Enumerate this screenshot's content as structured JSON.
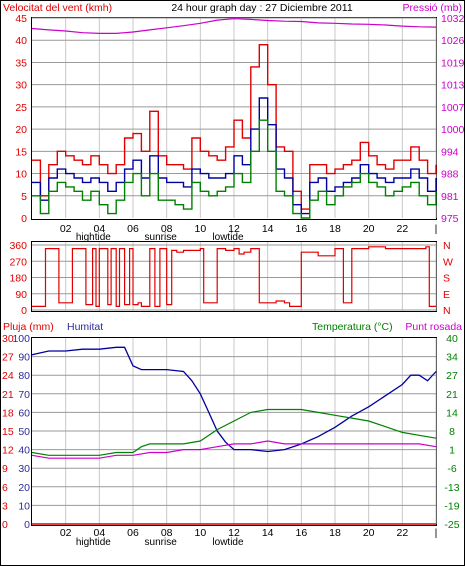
{
  "window": {
    "title": "24 hour graph day : 27 Diciembre 2011"
  },
  "colors": {
    "frame": "#000000",
    "red": "#e00000",
    "blue": "#0000a0",
    "green": "#008000",
    "magenta": "#cc00cc",
    "grid": "#c8c8c8",
    "hgrid": "#9a9a9a",
    "purple_label": "#2c2c9c"
  },
  "chart_data": [
    {
      "type": "line",
      "title": "24 hour graph day : 27 Diciembre 2011",
      "left_label": "Velocitat del vent (kmh)",
      "right_label": "Pressió (mb)",
      "y_ticks": [
        "0",
        "5",
        "10",
        "15",
        "20",
        "25",
        "30",
        "35",
        "40",
        "45"
      ],
      "ylim": [
        0,
        45
      ],
      "y2_ticks": [
        "975",
        "981",
        "988",
        "994",
        "1000",
        "1007",
        "1013",
        "1019",
        "1026",
        "1032"
      ],
      "y2lim": [
        975,
        1032
      ],
      "x_ticks": [
        "02",
        "04",
        "06",
        "08",
        "10",
        "12",
        "14",
        "16",
        "18",
        "20",
        "22",
        "|"
      ],
      "x_sublabels": [
        {
          "label": "hightide",
          "hour": 4
        },
        {
          "label": "sunrise",
          "hour": 8
        },
        {
          "label": "lowtide",
          "hour": 12
        }
      ],
      "series": [
        {
          "name": "Pressió",
          "axis": "right",
          "x": [
            0,
            1,
            2,
            3,
            4,
            5,
            6,
            7,
            8,
            9,
            10,
            11,
            12,
            13,
            14,
            15,
            16,
            17,
            18,
            19,
            20,
            21,
            22,
            23,
            24
          ],
          "values": [
            1029,
            1028.6,
            1028.3,
            1027.8,
            1027.6,
            1027.6,
            1028,
            1028.6,
            1029.2,
            1029.8,
            1030.5,
            1031.4,
            1031.8,
            1031.6,
            1031.3,
            1031.1,
            1031,
            1030.6,
            1030.5,
            1030.3,
            1030.2,
            1030,
            1029.7,
            1029.5,
            1029.4
          ]
        },
        {
          "name": "",
          "axis": "left",
          "x": [
            0,
            0.5,
            1,
            1.5,
            2,
            2.5,
            3,
            3.5,
            4,
            4.5,
            5,
            5.5,
            6,
            6.5,
            7,
            7.5,
            8,
            8.5,
            9,
            9.5,
            10,
            10.5,
            11,
            11.5,
            12,
            12.5,
            13,
            13.5,
            14,
            14.5,
            15,
            15.5,
            16,
            16.5,
            17,
            17.5,
            18,
            18.5,
            19,
            19.5,
            20,
            20.5,
            21,
            21.5,
            22,
            22.5,
            23,
            23.5,
            24
          ],
          "values": [
            13,
            5,
            12,
            15,
            14,
            13,
            12,
            14,
            12,
            10,
            12,
            18,
            19,
            15,
            24,
            14,
            12,
            12,
            11,
            18,
            15,
            14,
            13,
            16,
            22,
            18,
            34,
            39,
            30,
            16,
            15,
            6,
            2,
            12,
            12,
            10,
            11,
            12,
            13,
            17,
            14,
            12,
            11,
            13,
            13,
            16,
            13,
            10,
            12
          ]
        },
        {
          "name": "",
          "axis": "left",
          "x": [
            0,
            0.5,
            1,
            1.5,
            2,
            2.5,
            3,
            3.5,
            4,
            4.5,
            5,
            5.5,
            6,
            6.5,
            7,
            7.5,
            8,
            8.5,
            9,
            9.5,
            10,
            10.5,
            11,
            11.5,
            12,
            12.5,
            13,
            13.5,
            14,
            14.5,
            15,
            15.5,
            16,
            16.5,
            17,
            17.5,
            18,
            18.5,
            19,
            19.5,
            20,
            20.5,
            21,
            21.5,
            22,
            22.5,
            23,
            23.5,
            24
          ],
          "values": [
            8,
            4,
            9,
            11,
            10,
            9,
            8,
            9,
            8,
            6,
            8,
            11,
            13,
            9,
            14,
            9,
            8,
            8,
            7,
            11,
            10,
            9,
            9,
            10,
            14,
            12,
            20,
            27,
            21,
            11,
            9,
            3,
            1,
            8,
            9,
            6,
            7,
            8,
            9,
            12,
            10,
            9,
            8,
            9,
            9,
            11,
            9,
            6,
            9
          ]
        },
        {
          "name": "",
          "axis": "left",
          "x": [
            0,
            0.5,
            1,
            1.5,
            2,
            2.5,
            3,
            3.5,
            4,
            4.5,
            5,
            5.5,
            6,
            6.5,
            7,
            7.5,
            8,
            8.5,
            9,
            9.5,
            10,
            10.5,
            11,
            11.5,
            12,
            12.5,
            13,
            13.5,
            14,
            14.5,
            15,
            15.5,
            16,
            16.5,
            17,
            17.5,
            18,
            18.5,
            19,
            19.5,
            20,
            20.5,
            21,
            21.5,
            22,
            22.5,
            23,
            23.5,
            24
          ],
          "values": [
            5,
            1,
            6,
            8,
            7,
            6,
            4,
            6,
            3,
            1,
            4,
            8,
            10,
            5,
            10,
            4,
            4,
            3,
            2,
            8,
            6,
            5,
            6,
            7,
            10,
            8,
            15,
            22,
            15,
            6,
            5,
            1,
            0,
            4,
            6,
            3,
            5,
            7,
            8,
            10,
            8,
            7,
            5,
            6,
            7,
            8,
            5,
            3,
            6
          ]
        }
      ]
    },
    {
      "type": "line",
      "left_ticks": [
        "0",
        "90",
        "180",
        "270",
        "360"
      ],
      "ylim": [
        0,
        360
      ],
      "right_ticks": [
        "N",
        "E",
        "S",
        "W",
        "N"
      ],
      "series": [
        {
          "name": "",
          "x": [
            0,
            0.6,
            0.8,
            1.4,
            1.6,
            2.2,
            2.4,
            3.0,
            3.2,
            3.6,
            3.8,
            4.0,
            4.2,
            4.5,
            4.7,
            5.0,
            5.2,
            5.5,
            5.8,
            6.0,
            6.3,
            6.5,
            7.0,
            7.3,
            7.6,
            8.0,
            8.3,
            8.6,
            9.0,
            9.5,
            10.0,
            10.2,
            10.5,
            11,
            11.5,
            12,
            12.3,
            12.6,
            13,
            13.5,
            14,
            14.5,
            15,
            15.3,
            15.6,
            16,
            16.5,
            17,
            17.5,
            18,
            18.5,
            19,
            19.5,
            20,
            20.5,
            21,
            21.5,
            22,
            22.5,
            23,
            23.4,
            23.6,
            24
          ],
          "values": [
            20,
            20,
            340,
            340,
            40,
            40,
            340,
            340,
            30,
            340,
            20,
            340,
            340,
            30,
            340,
            20,
            340,
            30,
            340,
            30,
            40,
            20,
            340,
            20,
            340,
            30,
            330,
            320,
            330,
            330,
            340,
            40,
            40,
            340,
            330,
            340,
            310,
            320,
            340,
            40,
            40,
            50,
            40,
            20,
            20,
            320,
            320,
            300,
            300,
            340,
            40,
            340,
            340,
            350,
            350,
            340,
            340,
            340,
            340,
            340,
            350,
            20,
            20
          ]
        }
      ]
    },
    {
      "type": "line",
      "left_labels": {
        "rain": "Pluja (mm)",
        "hum": "Humitat"
      },
      "right_labels": {
        "temp": "Temperatura (°C)",
        "dew": "Punt rosada"
      },
      "rain_ticks": [
        "0",
        "3",
        "6",
        "9",
        "12",
        "15",
        "18",
        "21",
        "24",
        "27",
        "30"
      ],
      "hum_ticks": [
        "0",
        "10",
        "20",
        "30",
        "40",
        "50",
        "60",
        "70",
        "80",
        "90",
        "100"
      ],
      "temp_ticks": [
        "-25",
        "-19",
        "-13",
        "-6",
        "1",
        "8",
        "14",
        "21",
        "27",
        "34",
        "40"
      ],
      "x_ticks": [
        "02",
        "04",
        "06",
        "08",
        "10",
        "12",
        "14",
        "16",
        "18",
        "20",
        "22",
        "|"
      ],
      "x_sublabels": [
        {
          "label": "hightide",
          "hour": 4
        },
        {
          "label": "sunrise",
          "hour": 8
        },
        {
          "label": "lowtide",
          "hour": 12
        }
      ],
      "series": [
        {
          "name": "Pluja (mm)",
          "axis": "rain",
          "x": [
            0,
            24
          ],
          "values": [
            0,
            0
          ]
        },
        {
          "name": "Humitat",
          "axis": "hum",
          "x": [
            0,
            1,
            2,
            3,
            4,
            5,
            5.5,
            6,
            6.5,
            7,
            8,
            9,
            9.5,
            10,
            10.5,
            11,
            11.5,
            12,
            12.5,
            13,
            14,
            15,
            16,
            17,
            18,
            19,
            20,
            21,
            22,
            22.5,
            23,
            23.5,
            24
          ],
          "values": [
            91,
            93,
            93,
            94,
            94,
            95,
            95,
            85,
            83,
            83,
            83,
            82,
            77,
            70,
            60,
            50,
            44,
            40,
            40,
            40,
            39,
            40,
            43,
            47,
            52,
            58,
            63,
            69,
            75,
            80,
            80,
            77,
            82
          ]
        },
        {
          "name": "Temperatura",
          "axis": "temp",
          "x": [
            0,
            1,
            2,
            3,
            4,
            5,
            6,
            6.5,
            7,
            8,
            9,
            10,
            11,
            12,
            13,
            14,
            15,
            16,
            17,
            18,
            19,
            20,
            21,
            22,
            23,
            24
          ],
          "values": [
            0,
            -1,
            -1,
            -1,
            -1,
            0,
            0,
            2,
            3,
            3,
            3,
            4,
            8,
            11,
            14,
            15,
            15,
            15,
            14,
            13,
            12,
            11,
            9,
            7,
            6,
            5
          ]
        },
        {
          "name": "Punt rosada",
          "axis": "temp",
          "x": [
            0,
            1,
            2,
            3,
            4,
            5,
            6,
            7,
            8,
            9,
            10,
            11,
            12,
            13,
            14,
            15,
            16,
            17,
            18,
            19,
            20,
            21,
            22,
            23,
            24
          ],
          "values": [
            -1,
            -2,
            -2,
            -2,
            -2,
            -1,
            -1,
            0,
            0,
            1,
            1,
            2,
            3,
            3,
            4,
            3,
            3,
            3,
            3,
            3,
            3,
            3,
            3,
            3,
            2
          ]
        }
      ]
    }
  ]
}
